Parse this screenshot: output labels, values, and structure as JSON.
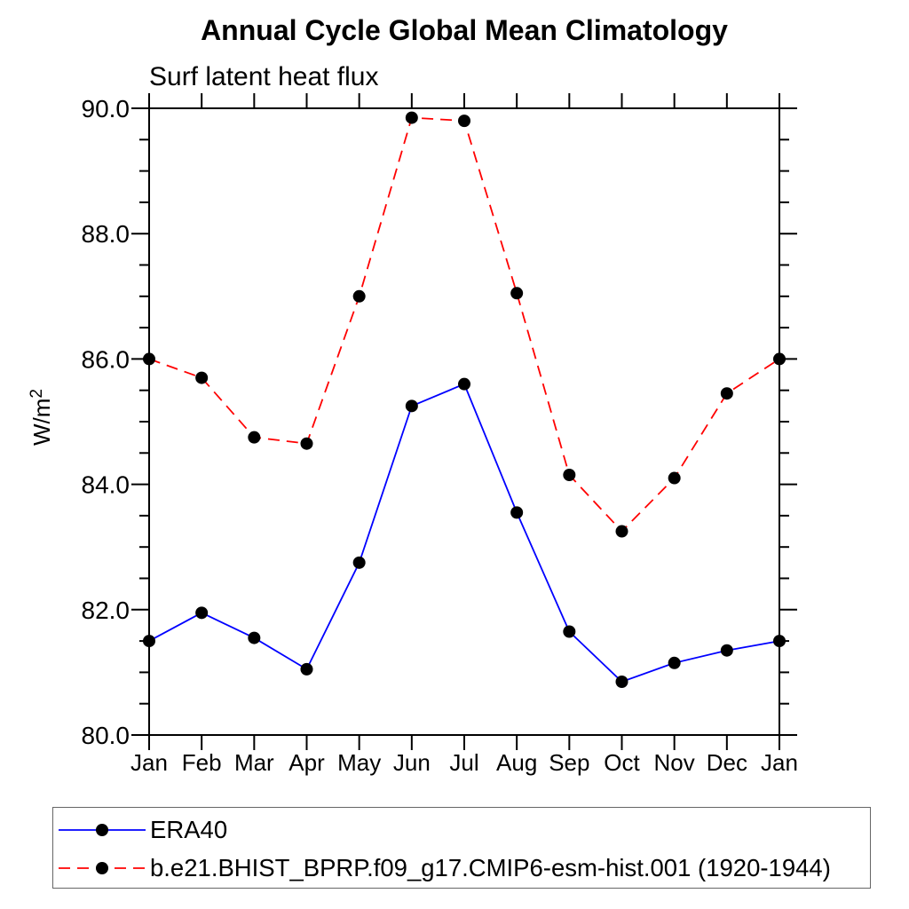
{
  "header": {
    "title": "Annual Cycle Global Mean Climatology",
    "subtitle": "Surf latent heat flux"
  },
  "chart_data": {
    "type": "line",
    "title": "Annual Cycle Global Mean Climatology",
    "subtitle": "Surf latent heat flux",
    "xlabel": "",
    "ylabel": "W/m²",
    "ylabel_base": "W/m",
    "ylabel_sup": "2",
    "categories": [
      "Jan",
      "Feb",
      "Mar",
      "Apr",
      "May",
      "Jun",
      "Jul",
      "Aug",
      "Sep",
      "Oct",
      "Nov",
      "Dec",
      "Jan"
    ],
    "ylim": [
      80.0,
      90.0
    ],
    "yticks_major": [
      80.0,
      82.0,
      84.0,
      86.0,
      88.0,
      90.0
    ],
    "ytick_labels": [
      "80.0",
      "82.0",
      "84.0",
      "86.0",
      "88.0",
      "90.0"
    ],
    "y_minor_interval": 0.5,
    "grid": false,
    "legend_position": "bottom",
    "frame_color": "#000000",
    "series": [
      {
        "name": "ERA40",
        "color": "#0000ff",
        "line_style": "solid",
        "marker": "filled-circle",
        "marker_color": "#000000",
        "values": [
          81.5,
          81.95,
          81.55,
          81.05,
          82.75,
          85.25,
          85.6,
          83.55,
          81.65,
          80.85,
          81.15,
          81.35,
          81.5
        ]
      },
      {
        "name": "b.e21.BHIST_BPRP.f09_g17.CMIP6-esm-hist.001 (1920-1944)",
        "color": "#ff0000",
        "line_style": "dashed",
        "marker": "filled-circle",
        "marker_color": "#000000",
        "values": [
          86.0,
          85.7,
          84.75,
          84.65,
          87.0,
          89.85,
          89.8,
          87.05,
          84.15,
          83.25,
          84.1,
          85.45,
          86.0
        ]
      }
    ]
  }
}
